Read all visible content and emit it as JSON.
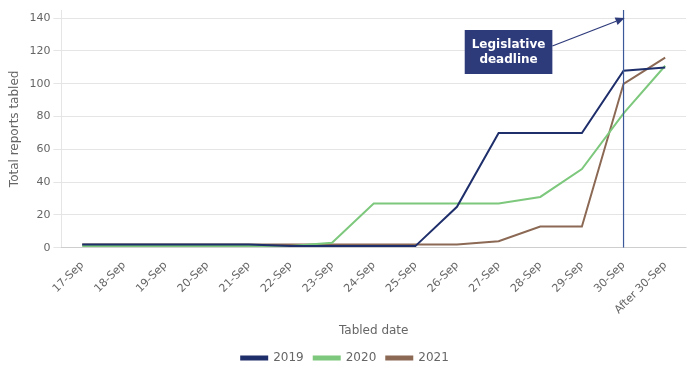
{
  "chart_data": {
    "type": "line",
    "categories": [
      "17-Sep",
      "18-Sep",
      "19-Sep",
      "20-Sep",
      "21-Sep",
      "22-Sep",
      "23-Sep",
      "24-Sep",
      "25-Sep",
      "26-Sep",
      "27-Sep",
      "28-Sep",
      "29-Sep",
      "30-Sep",
      "After 30-Sep"
    ],
    "series": [
      {
        "name": "2019",
        "color": "#1F2F6B",
        "values": [
          2,
          2,
          2,
          2,
          2,
          1,
          1,
          1,
          1,
          25,
          70,
          70,
          70,
          108,
          110
        ]
      },
      {
        "name": "2020",
        "color": "#7DC87D",
        "values": [
          1,
          1,
          1,
          1,
          1,
          1,
          3,
          27,
          27,
          27,
          27,
          31,
          48,
          82,
          111
        ]
      },
      {
        "name": "2021",
        "color": "#8B6954",
        "values": [
          2,
          2,
          2,
          2,
          2,
          2,
          2,
          2,
          2,
          2,
          4,
          13,
          13,
          100,
          116
        ]
      }
    ],
    "xlabel": "Tabled date",
    "ylabel": "Total reports tabled",
    "ylim": [
      0,
      145
    ],
    "yticks": [
      0,
      20,
      40,
      60,
      80,
      100,
      120,
      140
    ],
    "grid": "y",
    "legend": "bottom",
    "vline": {
      "x": "30-Sep",
      "color": "#3B5998"
    },
    "annotations": [
      {
        "text": "Legislative\ndeadline",
        "x": "30-Sep",
        "color": "#2E3B7B"
      }
    ]
  }
}
